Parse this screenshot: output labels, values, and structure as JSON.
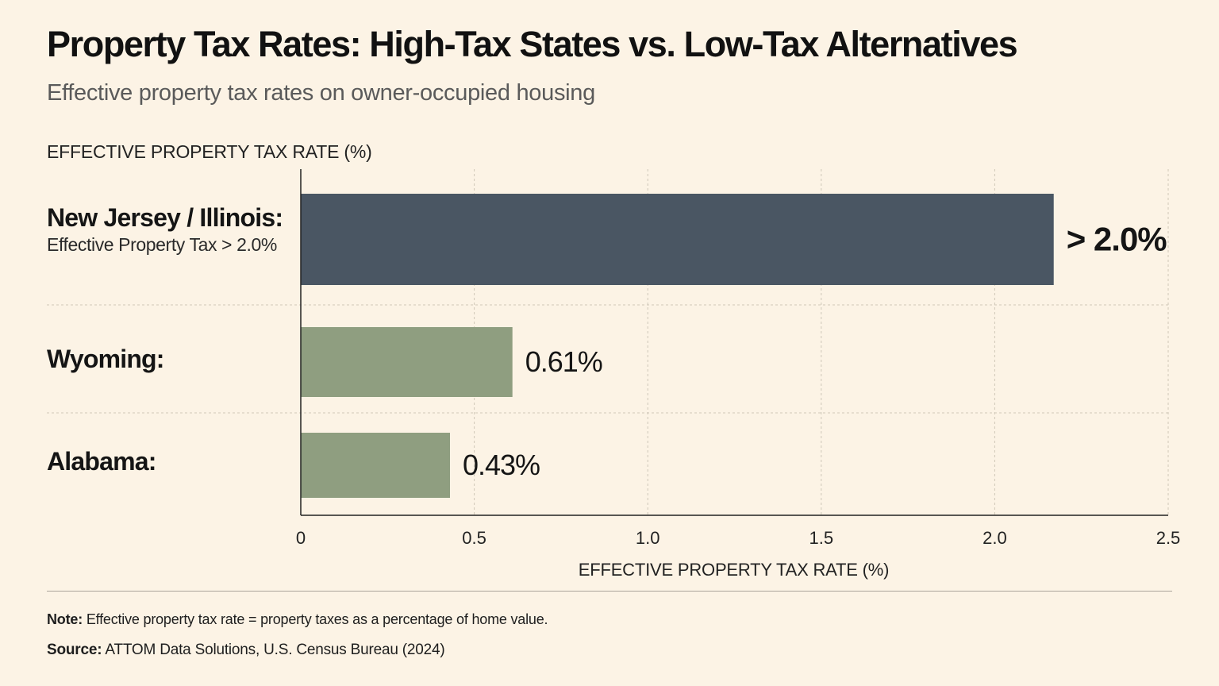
{
  "title": "Property Tax Rates: High-Tax States vs. Low-Tax Alternatives",
  "subtitle": "Effective property tax rates on owner-occupied housing",
  "colors": {
    "background": "#fcf3e5",
    "high_tax_bar": "#4a5663",
    "low_tax_bar": "#8f9e80",
    "grid": "#cfc7b8",
    "axis": "#222222"
  },
  "chart_data": {
    "type": "bar",
    "orientation": "horizontal",
    "y_axis_heading": "EFFECTIVE PROPERTY TAX RATE (%)",
    "xlabel": "EFFECTIVE PROPERTY TAX RATE (%)",
    "xlim": [
      0,
      2.5
    ],
    "xticks": [
      "0",
      "0.5",
      "1.0",
      "1.5",
      "2.0",
      "2.5"
    ],
    "grid": true,
    "categories": [
      {
        "label": "New Jersey / Illinois:",
        "sublabel": "Effective Property Tax > 2.0%",
        "value": 2.17,
        "value_label": "> 2.0%",
        "group": "high"
      },
      {
        "label": "Wyoming:",
        "sublabel": "",
        "value": 0.61,
        "value_label": "0.61%",
        "group": "low"
      },
      {
        "label": "Alabama:",
        "sublabel": "",
        "value": 0.43,
        "value_label": "0.43%",
        "group": "low"
      }
    ]
  },
  "footer": {
    "note_lead": "Note:",
    "note_text": "Effective property tax rate = property taxes as a percentage of home value.",
    "source_lead": "Source:",
    "source_text": "ATTOM Data Solutions, U.S. Census Bureau (2024)"
  }
}
